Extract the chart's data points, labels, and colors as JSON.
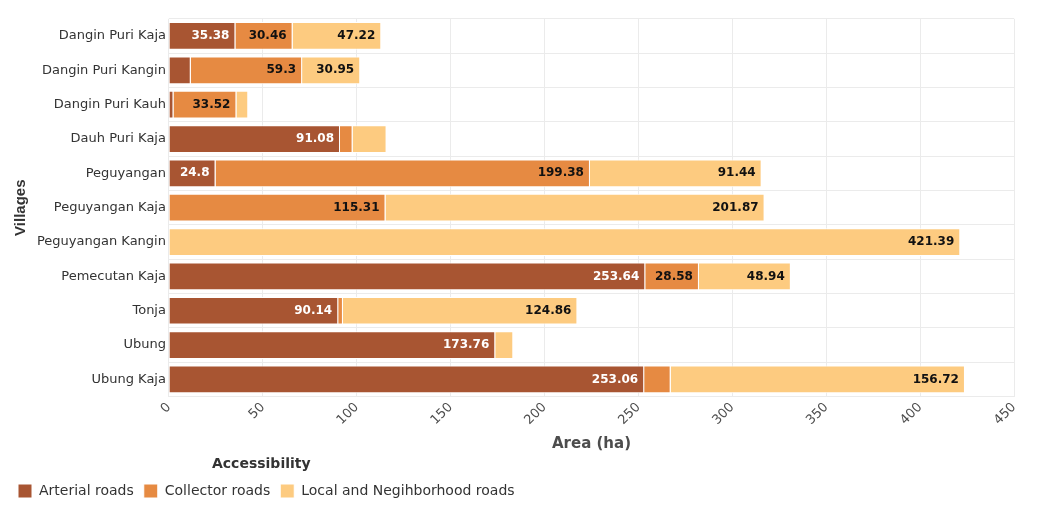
{
  "chart_data": {
    "type": "bar",
    "orientation": "horizontal",
    "stacked": true,
    "xlabel": "Area (ha)",
    "ylabel": "Villages",
    "legend_title": "Accessibility",
    "legend": "bottom left",
    "grid": true,
    "categories": [
      "Dangin Puri Kaja",
      "Dangin Puri Kangin",
      "Dangin Puri Kauh",
      "Dauh Puri Kaja",
      "Peguyangan",
      "Peguyangan Kaja",
      "Peguyangan Kangin",
      "Pemecutan Kaja",
      "Tonja",
      "Ubung",
      "Ubung Kaja"
    ],
    "xlim": [
      0,
      450
    ],
    "xticks": [
      0,
      50,
      100,
      150,
      200,
      250,
      300,
      350,
      400,
      450
    ],
    "series": [
      {
        "name": "Arterial roads",
        "color": "#a85532",
        "values": [
          35.38,
          11.6,
          2.4,
          91.08,
          24.8,
          null,
          null,
          253.64,
          90.14,
          173.76,
          253.06
        ],
        "value_labels": [
          "35.38",
          null,
          null,
          "91.08",
          "24.8",
          null,
          null,
          "253.64",
          "90.14",
          "173.76",
          "253.06"
        ]
      },
      {
        "name": "Collector roads",
        "color": "#e68a42",
        "values": [
          30.46,
          59.3,
          33.52,
          6.7,
          199.38,
          115.31,
          null,
          28.58,
          2.5,
          null,
          14.1
        ],
        "value_labels": [
          "30.46",
          "59.3",
          "33.52",
          null,
          "199.38",
          "115.31",
          null,
          "28.58",
          null,
          null,
          null
        ]
      },
      {
        "name": "Local and Negihborhood roads",
        "color": "#fdcb80",
        "values": [
          47.22,
          30.95,
          6.3,
          18.1,
          91.44,
          201.87,
          421.39,
          48.94,
          124.86,
          9.6,
          156.72
        ],
        "value_labels": [
          "47.22",
          "30.95",
          null,
          null,
          "91.44",
          "201.87",
          "421.39",
          "48.94",
          "124.86",
          null,
          "156.72"
        ]
      }
    ]
  }
}
